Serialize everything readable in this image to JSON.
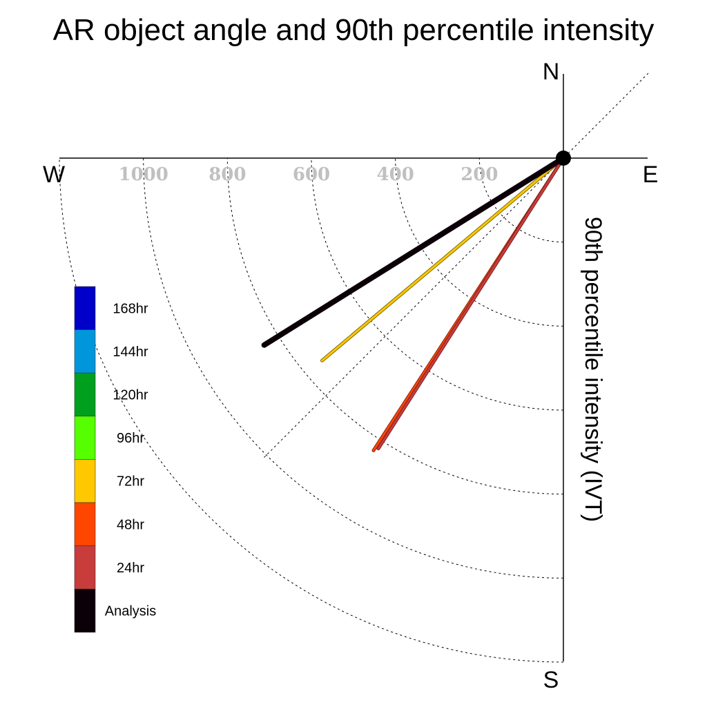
{
  "chart_data": {
    "type": "polar-vector",
    "title": "AR object angle and 90th percentile intensity",
    "ylabel": "90th percentile intensity (IVT)",
    "compass": {
      "north": "N",
      "south": "S",
      "east": "E",
      "west": "W"
    },
    "radial_ticks": [
      "1000",
      "800",
      "600",
      "400",
      "200"
    ],
    "radial_tick_values": [
      1000,
      800,
      600,
      400,
      200
    ],
    "rings_hidden_label": [
      1200
    ],
    "rlim": [
      0,
      1200
    ],
    "grid": true,
    "angle_convention": "degrees below west (clockwise from west toward south)",
    "legend_placement": "left",
    "legend": [
      {
        "label": "168hr",
        "color": "#0000c8"
      },
      {
        "label": "144hr",
        "color": "#0096dc"
      },
      {
        "label": "120hr",
        "color": "#00a01e"
      },
      {
        "label": "96hr",
        "color": "#55ff00"
      },
      {
        "label": "72hr",
        "color": "#ffc800"
      },
      {
        "label": "48hr",
        "color": "#ff4600"
      },
      {
        "label": "24hr",
        "color": "#c83c3c"
      },
      {
        "label": "Analysis",
        "color": "#0c0008"
      }
    ],
    "series": [
      {
        "name": "Analysis",
        "angle_deg": 32,
        "intensity": 840,
        "color": "#0c0008"
      },
      {
        "name": "72hr",
        "angle_deg": 40,
        "intensity": 750,
        "color": "#ffc800"
      },
      {
        "name": "48hr",
        "angle_deg": 57,
        "intensity": 830,
        "color": "#ff4600"
      },
      {
        "name": "24hr",
        "angle_deg": 57.5,
        "intensity": 820,
        "color": "#c83c3c"
      }
    ]
  }
}
